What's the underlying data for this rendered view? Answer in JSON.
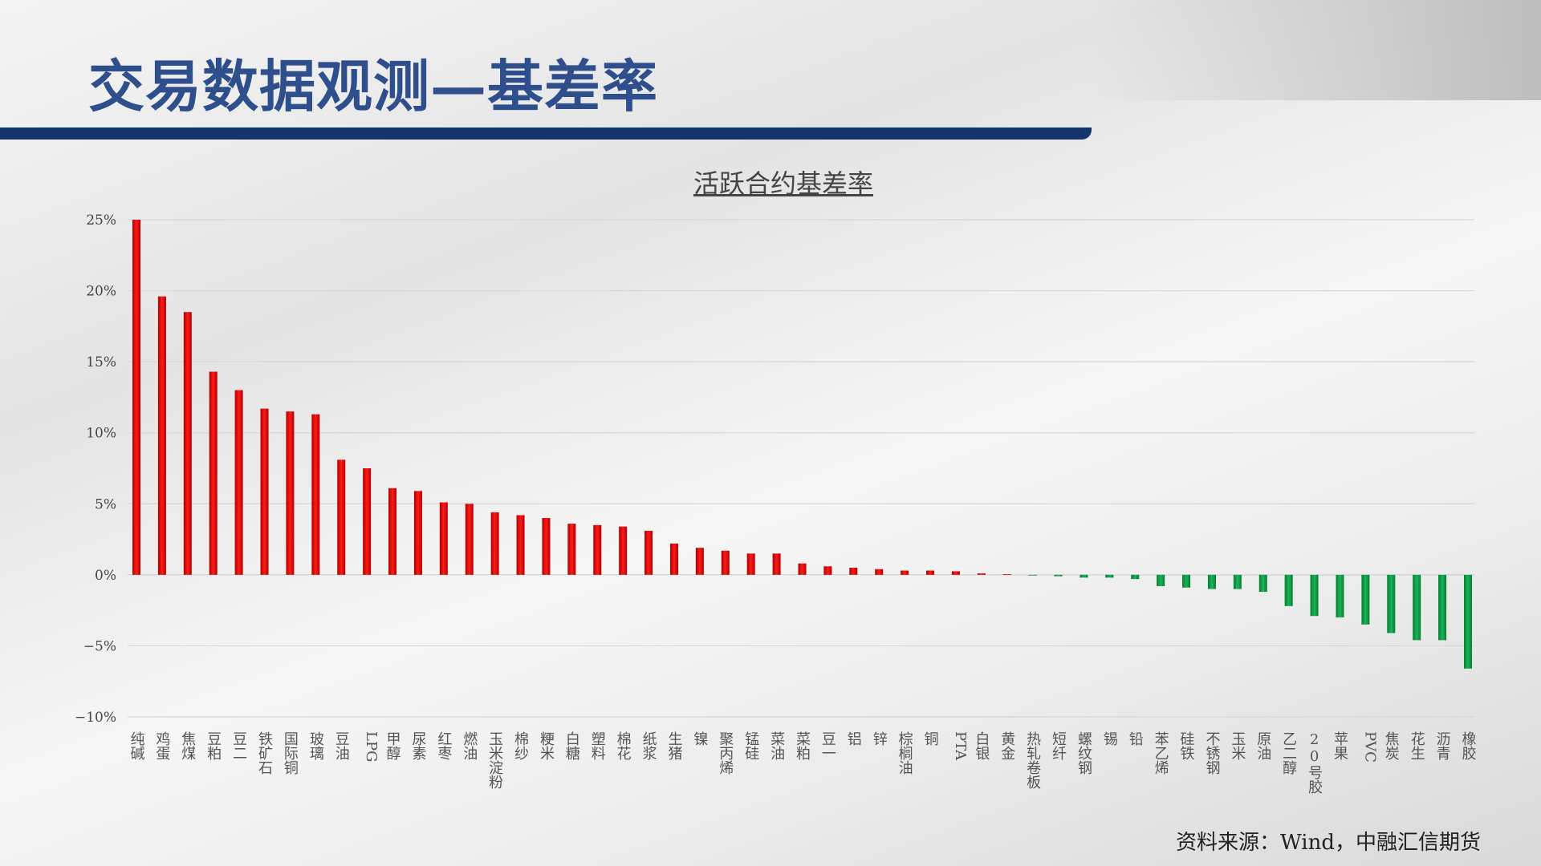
{
  "page_title": "交易数据观测—基差率",
  "source": "资料来源：Wind，中融汇信期货",
  "colors": {
    "positive": "#e00000",
    "negative": "#0f9a48",
    "title": "#2e4f8c",
    "band": "#15336e"
  },
  "chart_data": {
    "type": "bar",
    "title": "活跃合约基差率",
    "xlabel": "",
    "ylabel": "",
    "ylim": [
      -0.1,
      0.25
    ],
    "yticks": [
      0.25,
      0.2,
      0.15,
      0.1,
      0.05,
      0,
      -0.05,
      -0.1
    ],
    "ytick_labels": [
      "25%",
      "20%",
      "15%",
      "10%",
      "5%",
      "0%",
      "−5%",
      "−10%"
    ],
    "grid": true,
    "categories": [
      "纯碱",
      "鸡蛋",
      "焦煤",
      "豆粕",
      "豆二",
      "铁矿石",
      "国际铜",
      "玻璃",
      "豆油",
      "LPG",
      "甲醇",
      "尿素",
      "红枣",
      "燃油",
      "玉米淀粉",
      "棉纱",
      "粳米",
      "白糖",
      "塑料",
      "棉花",
      "纸浆",
      "生猪",
      "镍",
      "聚丙烯",
      "锰硅",
      "菜油",
      "菜粕",
      "豆一",
      "铝",
      "锌",
      "棕榈油",
      "铜",
      "PTA",
      "白银",
      "黄金",
      "热轧卷板",
      "短纤",
      "螺纹钢",
      "锡",
      "铅",
      "苯乙烯",
      "硅铁",
      "不锈钢",
      "玉米",
      "原油",
      "乙二醇",
      "20号胶",
      "苹果",
      "PVC",
      "焦炭",
      "花生",
      "沥青",
      "橡胶"
    ],
    "values": [
      0.25,
      0.196,
      0.185,
      0.143,
      0.13,
      0.117,
      0.115,
      0.113,
      0.081,
      0.075,
      0.061,
      0.059,
      0.051,
      0.05,
      0.044,
      0.042,
      0.04,
      0.036,
      0.035,
      0.034,
      0.031,
      0.022,
      0.019,
      0.017,
      0.015,
      0.015,
      0.008,
      0.006,
      0.005,
      0.004,
      0.003,
      0.003,
      0.0025,
      0.001,
      0.0005,
      -0.0005,
      -0.001,
      -0.002,
      -0.002,
      -0.003,
      -0.008,
      -0.009,
      -0.01,
      -0.01,
      -0.012,
      -0.022,
      -0.029,
      -0.03,
      -0.035,
      -0.041,
      -0.046,
      -0.046,
      -0.066
    ]
  }
}
